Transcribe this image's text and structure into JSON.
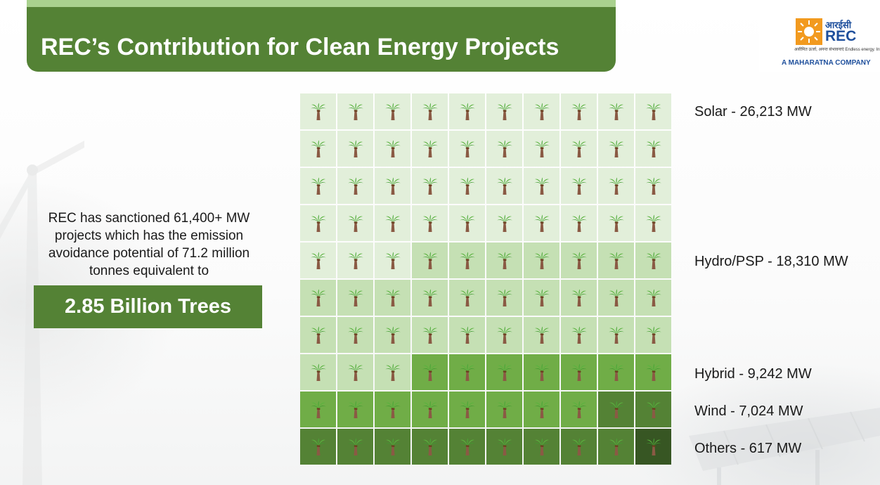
{
  "slide": {
    "title": "REC’s Contribution for Clean Energy Projects"
  },
  "logo": {
    "hindi_name": "आरईसी",
    "name": "REC",
    "tagline": "असीमित ऊर्जा, अनन्त संभावनाएं  Endless energy. Infinite possibilities",
    "subtitle": "A MAHARATNA COMPANY"
  },
  "summary": {
    "description": "REC has sanctioned 61,400+ MW projects which has the emission avoidance potential of 71.2 million tonnes equivalent to",
    "highlight": "2.85 Billion Trees"
  },
  "chart_data": {
    "type": "waffle",
    "rows": 10,
    "cols": 10,
    "icon": "palm-tree-icon",
    "series": [
      {
        "key": "solar",
        "label": "Solar - 26,213 MW",
        "cells": 43,
        "color": "#e2efda"
      },
      {
        "key": "hydro",
        "label": "Hydro/PSP - 18,310 MW",
        "cells": 30,
        "color": "#c5e0b4"
      },
      {
        "key": "hybrid",
        "label": "Hybrid - 9,242 MW",
        "cells": 15,
        "color": "#70ad47"
      },
      {
        "key": "wind",
        "label": "Wind - 7,024 MW",
        "cells": 11,
        "color": "#548235"
      },
      {
        "key": "others",
        "label": "Others - 617 MW",
        "cells": 1,
        "color": "#375623"
      }
    ]
  }
}
